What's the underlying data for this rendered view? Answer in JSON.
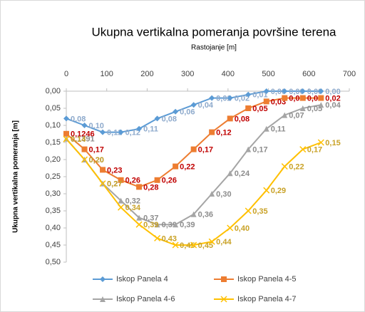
{
  "chart_data": {
    "type": "line",
    "title": "Ukupna vertikalna pomeranja površine terena",
    "subtitle": "Rastojanje [m]",
    "y_label": "Ukupna vertikalna pomeranja [m]",
    "x": [
      0,
      45,
      90,
      135,
      180,
      225,
      270,
      315,
      360,
      405,
      450,
      495,
      540,
      585,
      630
    ],
    "xlim": [
      0,
      700
    ],
    "xticks": [
      0,
      100,
      200,
      300,
      400,
      500,
      600,
      700
    ],
    "ylim": [
      0,
      0.5
    ],
    "y_inverted": true,
    "yticks": [
      {
        "value": 0,
        "label": "0,00"
      },
      {
        "value": 0.05,
        "label": "0,05"
      },
      {
        "value": 0.1,
        "label": "0,10"
      },
      {
        "value": 0.15,
        "label": "0,15"
      },
      {
        "value": 0.2,
        "label": "0,20"
      },
      {
        "value": 0.25,
        "label": "0,25"
      },
      {
        "value": 0.3,
        "label": "0,30"
      },
      {
        "value": 0.35,
        "label": "0,35"
      },
      {
        "value": 0.4,
        "label": "0,40"
      },
      {
        "value": 0.45,
        "label": "0,45"
      },
      {
        "value": 0.5,
        "label": "0,50"
      }
    ],
    "legend": "bottom",
    "series": [
      {
        "name": "Iskop Panela 4",
        "color": "#5b9bd5",
        "label_color": "#8eaacc",
        "marker": "diamond",
        "values": [
          0.08,
          0.1,
          0.12,
          0.12,
          0.11,
          0.08,
          0.06,
          0.04,
          0.02,
          0.02,
          0.01,
          0.0,
          0.0,
          0.0,
          0.0
        ],
        "value_labels": [
          "0,08",
          "0,10",
          "0,12",
          "0,12",
          "0,11",
          "0,08",
          "0,06",
          "0,04",
          "0,02",
          "0,02",
          "0,01",
          "0,00",
          "0,00",
          "0,00",
          "0,00"
        ]
      },
      {
        "name": "Iskop Panela 4-5",
        "color": "#ed7d31",
        "label_color": "#c00000",
        "marker": "square",
        "values": [
          0.1246,
          0.17,
          0.23,
          0.26,
          0.28,
          0.26,
          0.22,
          0.17,
          0.12,
          0.08,
          0.05,
          0.03,
          0.02,
          0.02,
          0.02
        ],
        "value_labels": [
          "0,1246",
          "0,17",
          "0,23",
          "0,26",
          "0,28",
          "0,26",
          "0,22",
          "0,17",
          "0,12",
          "0,08",
          "0,05",
          "0,03",
          "0,02",
          "0,02",
          "0,02"
        ]
      },
      {
        "name": "Iskop Panela 4-6",
        "color": "#a5a5a5",
        "label_color": "#8c8c8c",
        "marker": "triangle",
        "values": [
          0.1391,
          0.2,
          0.27,
          0.32,
          0.37,
          0.39,
          0.39,
          0.36,
          0.3,
          0.24,
          0.17,
          0.11,
          0.07,
          0.05,
          0.04
        ],
        "value_labels": [
          "0,1391",
          "0,20",
          "0,27",
          "0,32",
          "0,37",
          "0,39",
          "0,39",
          "0,36",
          "0,30",
          "0,24",
          "0,17",
          "0,11",
          "0,07",
          "0,05",
          "0,04"
        ]
      },
      {
        "name": "Iskop Panela 4-7",
        "color": "#ffc000",
        "label_color": "#c9a227",
        "marker": "x",
        "values": [
          0.14,
          0.2,
          0.27,
          0.34,
          0.39,
          0.43,
          0.45,
          0.45,
          0.44,
          0.4,
          0.35,
          0.29,
          0.22,
          0.17,
          0.15
        ],
        "value_labels": [
          "0,14",
          "0,20",
          "0,27",
          "0,34",
          "0,39",
          "0,43",
          "0,45",
          "0,45",
          "0,44",
          "0,40",
          "0,35",
          "0,29",
          "0,22",
          "0,17",
          "0,15"
        ]
      }
    ]
  }
}
